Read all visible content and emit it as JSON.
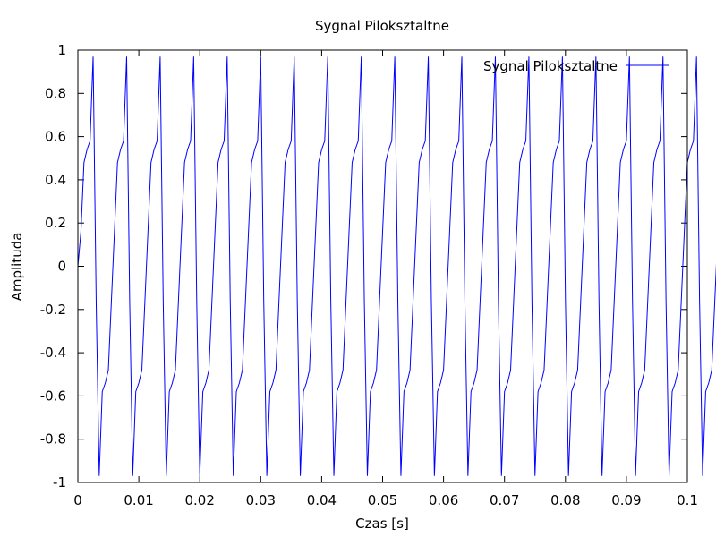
{
  "chart_data": {
    "type": "line",
    "title": "Sygnal Piloksztaltne",
    "xlabel": "Czas [s]",
    "ylabel": "Amplituda",
    "xlim": [
      0,
      0.1
    ],
    "ylim": [
      -1,
      1
    ],
    "x_ticks": [
      "0",
      "0.01",
      "0.02",
      "0.03",
      "0.04",
      "0.05",
      "0.06",
      "0.07",
      "0.08",
      "0.09",
      "0.1"
    ],
    "y_ticks": [
      "-1",
      "-0.8",
      "-0.6",
      "-0.4",
      "-0.2",
      "0",
      "0.2",
      "0.4",
      "0.6",
      "0.8",
      "1"
    ],
    "grid": false,
    "legend_position": "top-right",
    "series": [
      {
        "name": "Sygnal Piloksztaltne",
        "color": "#0000ff",
        "sample_step": 0.0005,
        "frequency_hz": 200,
        "y": [
          0,
          0.16,
          0.48,
          0.54,
          0.58,
          0.97,
          -0.16,
          -0.97,
          -0.58,
          -0.54,
          -0.48,
          -0.16,
          0.16,
          0.48,
          0.54,
          0.58,
          0.97,
          -0.16,
          -0.97,
          -0.58,
          -0.54,
          -0.48,
          -0.16,
          0.16,
          0.48,
          0.54,
          0.58,
          0.97,
          -0.16,
          -0.97,
          -0.58,
          -0.54,
          -0.48,
          -0.16,
          0.16,
          0.48,
          0.54,
          0.58,
          0.97,
          -0.16,
          -0.97,
          -0.58,
          -0.54,
          -0.48,
          -0.16,
          0.16,
          0.48,
          0.54,
          0.58,
          0.97,
          -0.16,
          -0.97,
          -0.58,
          -0.54,
          -0.48,
          -0.16,
          0.16,
          0.48,
          0.54,
          0.58,
          0.97,
          -0.16,
          -0.97,
          -0.58,
          -0.54,
          -0.48,
          -0.16,
          0.16,
          0.48,
          0.54,
          0.58,
          0.97,
          -0.16,
          -0.97,
          -0.58,
          -0.54,
          -0.48,
          -0.16,
          0.16,
          0.48,
          0.54,
          0.58,
          0.97,
          -0.16,
          -0.97,
          -0.58,
          -0.54,
          -0.48,
          -0.16,
          0.16,
          0.48,
          0.54,
          0.58,
          0.97,
          -0.16,
          -0.97,
          -0.58,
          -0.54,
          -0.48,
          -0.16,
          0.16,
          0.48,
          0.54,
          0.58,
          0.97,
          -0.16,
          -0.97,
          -0.58,
          -0.54,
          -0.48,
          -0.16,
          0.16,
          0.48,
          0.54,
          0.58,
          0.97,
          -0.16,
          -0.97,
          -0.58,
          -0.54,
          -0.48,
          -0.16,
          0.16,
          0.48,
          0.54,
          0.58,
          0.97,
          -0.16,
          -0.97,
          -0.58,
          -0.54,
          -0.48,
          -0.16,
          0.16,
          0.48,
          0.54,
          0.58,
          0.97,
          -0.16,
          -0.97,
          -0.58,
          -0.54,
          -0.48,
          -0.16,
          0.16,
          0.48,
          0.54,
          0.58,
          0.97,
          -0.16,
          -0.97,
          -0.58,
          -0.54,
          -0.48,
          -0.16,
          0.16,
          0.48,
          0.54,
          0.58,
          0.97,
          -0.16,
          -0.97,
          -0.58,
          -0.54,
          -0.48,
          -0.16,
          0.16,
          0.48,
          0.54,
          0.58,
          0.97,
          -0.16,
          -0.97,
          -0.58,
          -0.54,
          -0.48,
          -0.16,
          0.16,
          0.48,
          0.54,
          0.58,
          0.97,
          -0.16,
          -0.97,
          -0.58,
          -0.54,
          -0.48,
          -0.16,
          0.16,
          0.48,
          0.54,
          0.58,
          0.97,
          -0.16,
          -0.97,
          -0.58,
          -0.54,
          -0.48,
          -0.16,
          0.16,
          0.48,
          0.54,
          0.58,
          0.97,
          -0.16,
          -0.97,
          -0.58,
          -0.54,
          -0.48,
          -0.16,
          0.16,
          0.48,
          0.54,
          0.58,
          0.97,
          -0.16,
          -0.97,
          -0.58,
          -0.54,
          -0.48,
          -0.16
        ]
      }
    ]
  }
}
